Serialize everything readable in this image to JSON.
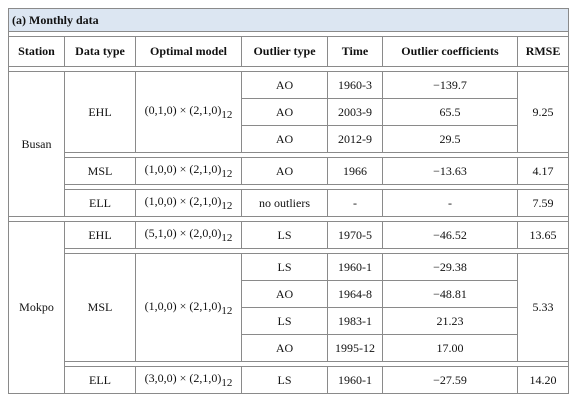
{
  "title": "(a) Monthly data",
  "columns": [
    "Station",
    "Data type",
    "Optimal model",
    "Outlier type",
    "Time",
    "Outlier coefficients",
    "RMSE"
  ],
  "stations": [
    {
      "name": "Busan",
      "groups": [
        {
          "data_type": "EHL",
          "model": {
            "text": "(0,1,0) × (2,1,0)",
            "sub": "12"
          },
          "rmse": "9.25",
          "rows": [
            {
              "outlier_type": "AO",
              "time": "1960-3",
              "coefficient": "−139.7"
            },
            {
              "outlier_type": "AO",
              "time": "2003-9",
              "coefficient": "65.5"
            },
            {
              "outlier_type": "AO",
              "time": "2012-9",
              "coefficient": "29.5"
            }
          ]
        },
        {
          "data_type": "MSL",
          "model": {
            "text": "(1,0,0) × (2,1,0)",
            "sub": "12"
          },
          "rmse": "4.17",
          "rows": [
            {
              "outlier_type": "AO",
              "time": "1966",
              "coefficient": "−13.63"
            }
          ]
        },
        {
          "data_type": "ELL",
          "model": {
            "text": "(1,0,0) × (2,1,0)",
            "sub": "12"
          },
          "rmse": "7.59",
          "rows": [
            {
              "outlier_type": "no outliers",
              "time": "-",
              "coefficient": "-"
            }
          ]
        }
      ]
    },
    {
      "name": "Mokpo",
      "groups": [
        {
          "data_type": "EHL",
          "model": {
            "text": "(5,1,0) × (2,0,0)",
            "sub": "12"
          },
          "rmse": "13.65",
          "rows": [
            {
              "outlier_type": "LS",
              "time": "1970-5",
              "coefficient": "−46.52"
            }
          ]
        },
        {
          "data_type": "MSL",
          "model": {
            "text": "(1,0,0) × (2,1,0)",
            "sub": "12"
          },
          "rmse": "5.33",
          "rows": [
            {
              "outlier_type": "LS",
              "time": "1960-1",
              "coefficient": "−29.38"
            },
            {
              "outlier_type": "AO",
              "time": "1964-8",
              "coefficient": "−48.81"
            },
            {
              "outlier_type": "LS",
              "time": "1983-1",
              "coefficient": "21.23"
            },
            {
              "outlier_type": "AO",
              "time": "1995-12",
              "coefficient": "17.00"
            }
          ]
        },
        {
          "data_type": "ELL",
          "model": {
            "text": "(3,0,0) × (2,1,0)",
            "sub": "12"
          },
          "rmse": "14.20",
          "rows": [
            {
              "outlier_type": "LS",
              "time": "1960-1",
              "coefficient": "−27.59"
            }
          ]
        }
      ]
    }
  ]
}
